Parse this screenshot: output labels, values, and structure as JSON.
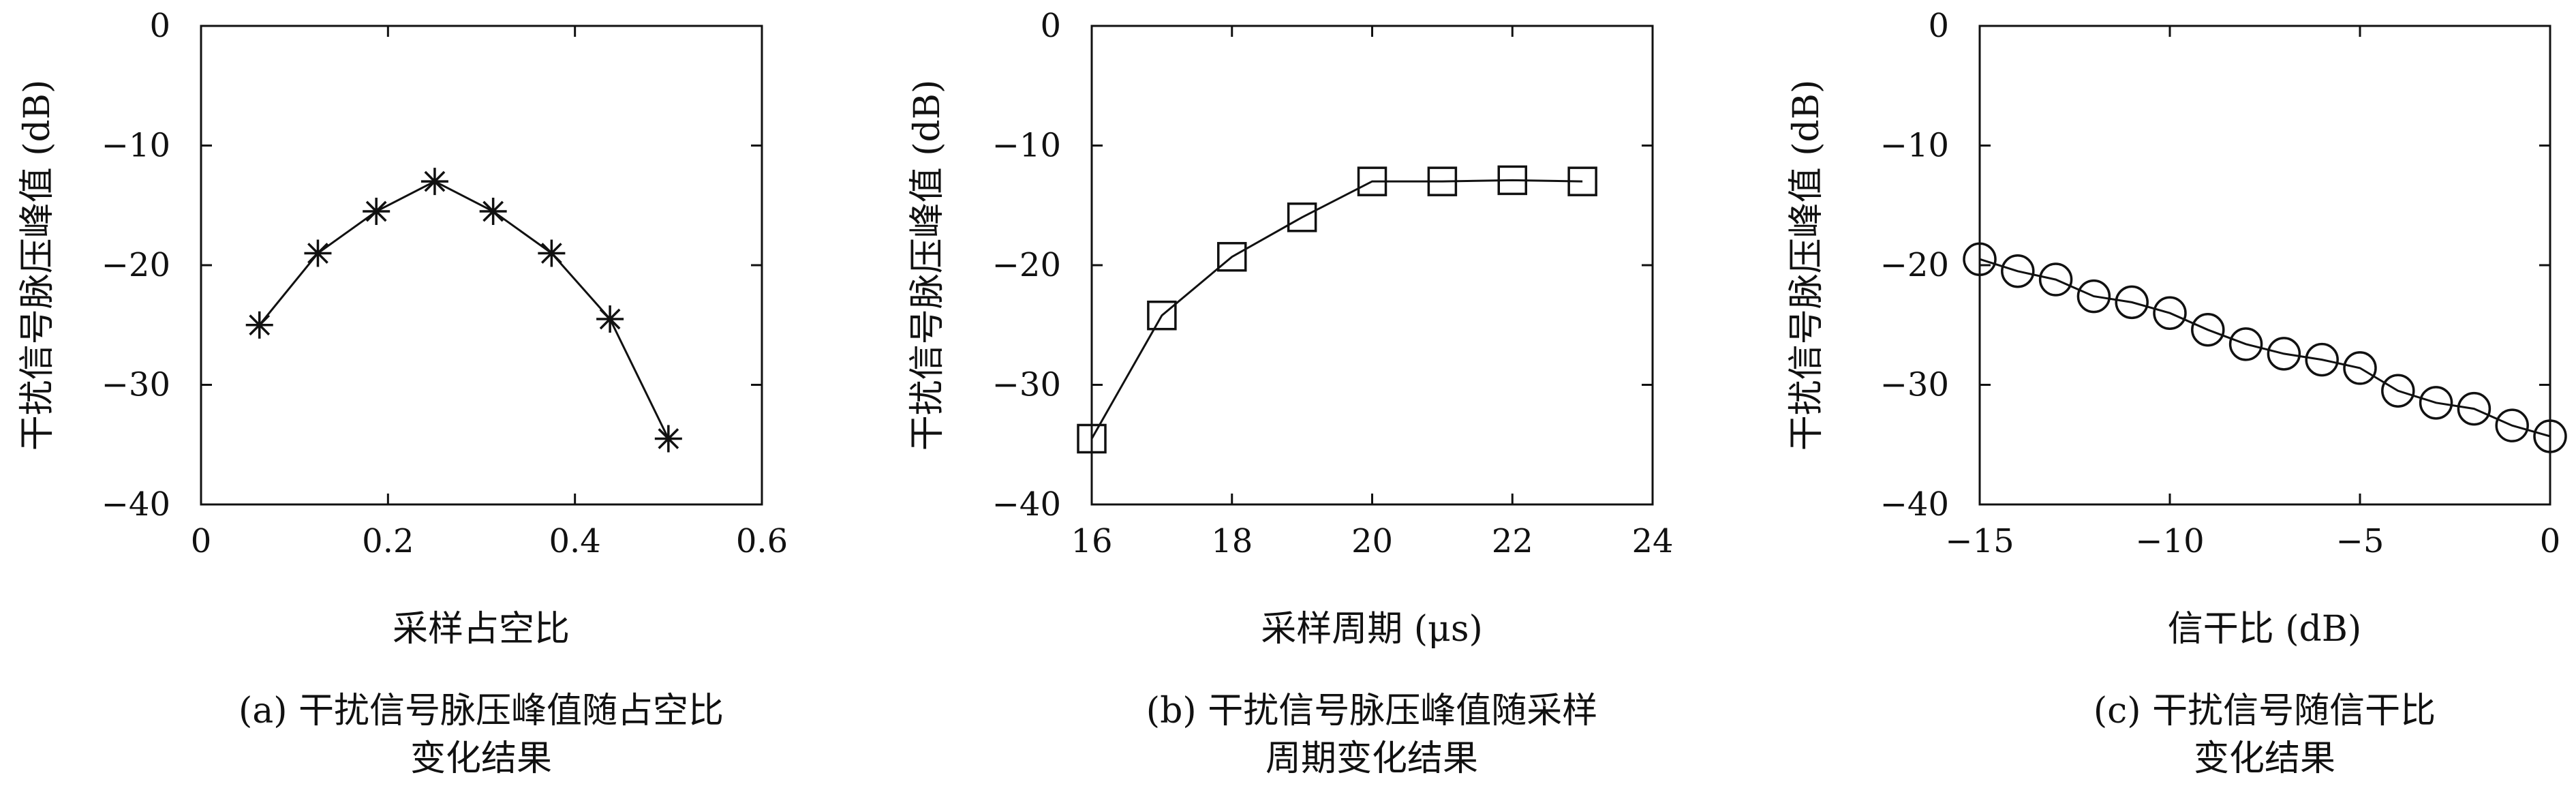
{
  "figure": {
    "colors": {
      "ink": "#111111",
      "background": "#ffffff"
    }
  },
  "chart_data": [
    {
      "id": "a",
      "type": "line",
      "marker": "asterisk",
      "x": [
        0.0625,
        0.125,
        0.1875,
        0.25,
        0.3125,
        0.375,
        0.4375,
        0.5
      ],
      "series": [
        {
          "values": [
            -25.0,
            -19.0,
            -15.5,
            -13.0,
            -15.5,
            -19.0,
            -24.5,
            -34.5
          ]
        }
      ],
      "xlabel": "采样占空比",
      "ylabel": "干扰信号脉压峰值 (dB)",
      "xlim": [
        0,
        0.6
      ],
      "ylim": [
        -40,
        0
      ],
      "xticks": [
        0,
        0.2,
        0.4,
        0.6
      ],
      "xtick_labels": [
        "0",
        "0.2",
        "0.4",
        "0.6"
      ],
      "yticks": [
        0,
        -10,
        -20,
        -30,
        -40
      ],
      "ytick_labels": [
        "0",
        "−10",
        "−20",
        "−30",
        "−40"
      ],
      "grid": false,
      "caption_lines": [
        "(a) 干扰信号脉压峰值随占空比",
        "变化结果"
      ]
    },
    {
      "id": "b",
      "type": "line",
      "marker": "square",
      "x": [
        16,
        17,
        18,
        19,
        20,
        21,
        22,
        23
      ],
      "series": [
        {
          "values": [
            -34.5,
            -24.2,
            -19.3,
            -16.0,
            -13.0,
            -13.0,
            -12.9,
            -13.0
          ]
        }
      ],
      "xlabel": "采样周期 (μs)",
      "ylabel": "干扰信号脉压峰值 (dB)",
      "xlim": [
        16,
        24
      ],
      "ylim": [
        -40,
        0
      ],
      "xticks": [
        16,
        18,
        20,
        22,
        24
      ],
      "xtick_labels": [
        "16",
        "18",
        "20",
        "22",
        "24"
      ],
      "yticks": [
        0,
        -10,
        -20,
        -30,
        -40
      ],
      "ytick_labels": [
        "0",
        "−10",
        "−20",
        "−30",
        "−40"
      ],
      "grid": false,
      "caption_lines": [
        "(b) 干扰信号脉压峰值随采样",
        "周期变化结果"
      ]
    },
    {
      "id": "c",
      "type": "line",
      "marker": "circle",
      "x": [
        -15,
        -14,
        -13,
        -12,
        -11,
        -10,
        -9,
        -8,
        -7,
        -6,
        -5,
        -4,
        -3,
        -2,
        -1,
        0
      ],
      "series": [
        {
          "values": [
            -19.5,
            -20.5,
            -21.2,
            -22.6,
            -23.1,
            -24.0,
            -25.4,
            -26.6,
            -27.4,
            -27.9,
            -28.6,
            -30.5,
            -31.5,
            -32.0,
            -33.4,
            -34.3
          ]
        }
      ],
      "xlabel": "信干比 (dB)",
      "ylabel": "干扰信号脉压峰值 (dB)",
      "xlim": [
        -15,
        0
      ],
      "ylim": [
        -40,
        0
      ],
      "xticks": [
        -15,
        -10,
        -5,
        0
      ],
      "xtick_labels": [
        "−15",
        "−10",
        "−5",
        "0"
      ],
      "yticks": [
        0,
        -10,
        -20,
        -30,
        -40
      ],
      "ytick_labels": [
        "0",
        "−10",
        "−20",
        "−30",
        "−40"
      ],
      "grid": false,
      "caption_lines": [
        "(c) 干扰信号随信干比",
        "变化结果"
      ]
    }
  ]
}
